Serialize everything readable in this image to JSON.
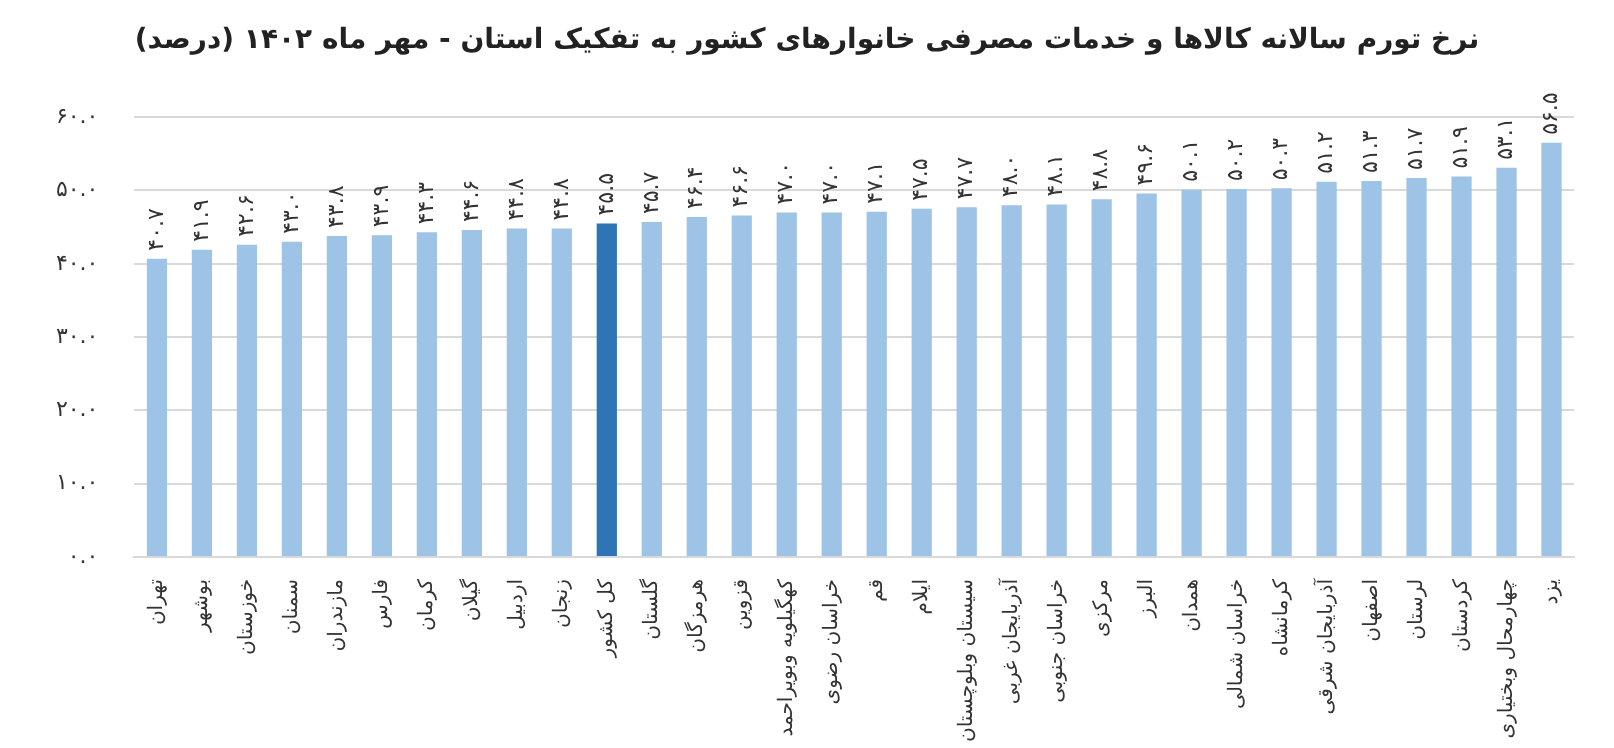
{
  "chart_data": {
    "type": "bar",
    "title": "نرخ تورم سالانه کالاها و خدمات مصرفی خانوارهای کشور به تفکیک استان - مهر ماه ۱۴۰۲ (درصد)",
    "categories": [
      "تهران",
      "بوشهر",
      "خوزستان",
      "سمنان",
      "مازندران",
      "فارس",
      "کرمان",
      "گیلان",
      "اردبیل",
      "زنجان",
      "کل کشور",
      "گلستان",
      "هرمزگان",
      "قزوین",
      "کهگیلویه وبویراحمد",
      "خراسان رضوی",
      "قم",
      "ایلام",
      "سیستان وبلوچستان",
      "آذربایجان غربی",
      "خراسان جنوبی",
      "مرکزی",
      "البرز",
      "همدان",
      "خراسان شمالی",
      "کرمانشاه",
      "آذربایجان شرقی",
      "اصفهان",
      "لرستان",
      "کردستان",
      "چهارمحال وبختیاری",
      "یزد"
    ],
    "values": [
      40.7,
      41.9,
      42.6,
      43.0,
      43.8,
      43.9,
      44.3,
      44.6,
      44.8,
      44.8,
      45.5,
      45.7,
      46.4,
      46.6,
      47.0,
      47.0,
      47.1,
      47.5,
      47.7,
      48.0,
      48.1,
      48.8,
      49.6,
      50.1,
      50.2,
      50.3,
      51.2,
      51.3,
      51.7,
      51.9,
      53.1,
      56.5
    ],
    "value_labels": [
      "۴۰.۷",
      "۴۱.۹",
      "۴۲.۶",
      "۴۳.۰",
      "۴۳.۸",
      "۴۳.۹",
      "۴۴.۳",
      "۴۴.۶",
      "۴۴.۸",
      "۴۴.۸",
      "۴۵.۵",
      "۴۵.۷",
      "۴۶.۴",
      "۴۶.۶",
      "۴۷.۰",
      "۴۷.۰",
      "۴۷.۱",
      "۴۷.۵",
      "۴۷.۷",
      "۴۸.۰",
      "۴۸.۱",
      "۴۸.۸",
      "۴۹.۶",
      "۵۰.۱",
      "۵۰.۲",
      "۵۰.۳",
      "۵۱.۲",
      "۵۱.۳",
      "۵۱.۷",
      "۵۱.۹",
      "۵۳.۱",
      "۵۶.۵"
    ],
    "colors": [
      "#9dc3e6",
      "#9dc3e6",
      "#9dc3e6",
      "#9dc3e6",
      "#9dc3e6",
      "#9dc3e6",
      "#9dc3e6",
      "#9dc3e6",
      "#9dc3e6",
      "#9dc3e6",
      "#2e75b6",
      "#9dc3e6",
      "#9dc3e6",
      "#9dc3e6",
      "#9dc3e6",
      "#9dc3e6",
      "#9dc3e6",
      "#9dc3e6",
      "#9dc3e6",
      "#9dc3e6",
      "#9dc3e6",
      "#9dc3e6",
      "#9dc3e6",
      "#9dc3e6",
      "#9dc3e6",
      "#9dc3e6",
      "#9dc3e6",
      "#9dc3e6",
      "#9dc3e6",
      "#9dc3e6",
      "#9dc3e6",
      "#9dc3e6"
    ],
    "ylim": [
      0,
      60
    ],
    "yticks": [
      {
        "value": 0,
        "label": "۰.۰"
      },
      {
        "value": 10,
        "label": "۱۰.۰"
      },
      {
        "value": 20,
        "label": "۲۰.۰"
      },
      {
        "value": 30,
        "label": "۳۰.۰"
      },
      {
        "value": 40,
        "label": "۴۰.۰"
      },
      {
        "value": 50,
        "label": "۵۰.۰"
      },
      {
        "value": 60,
        "label": "۶۰.۰"
      }
    ],
    "grid": "y",
    "legend": false
  }
}
